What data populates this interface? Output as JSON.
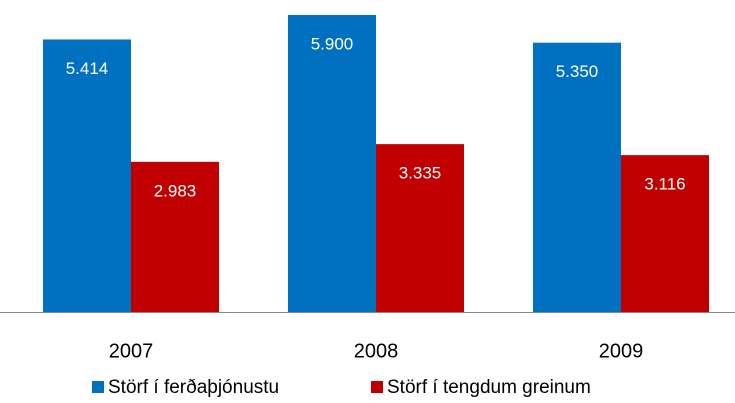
{
  "chart_data": {
    "type": "bar",
    "categories": [
      "2007",
      "2008",
      "2009"
    ],
    "series": [
      {
        "name": "Störf í ferðaþjónustu",
        "color": "#0070c0",
        "values": [
          5414,
          5900,
          5350
        ],
        "value_labels": [
          "5.414",
          "5.900",
          "5.350"
        ]
      },
      {
        "name": "Störf í tengdum greinum",
        "color": "#c00000",
        "values": [
          2983,
          3335,
          3116
        ],
        "value_labels": [
          "2.983",
          "3.335",
          "3.116"
        ]
      }
    ]
  }
}
